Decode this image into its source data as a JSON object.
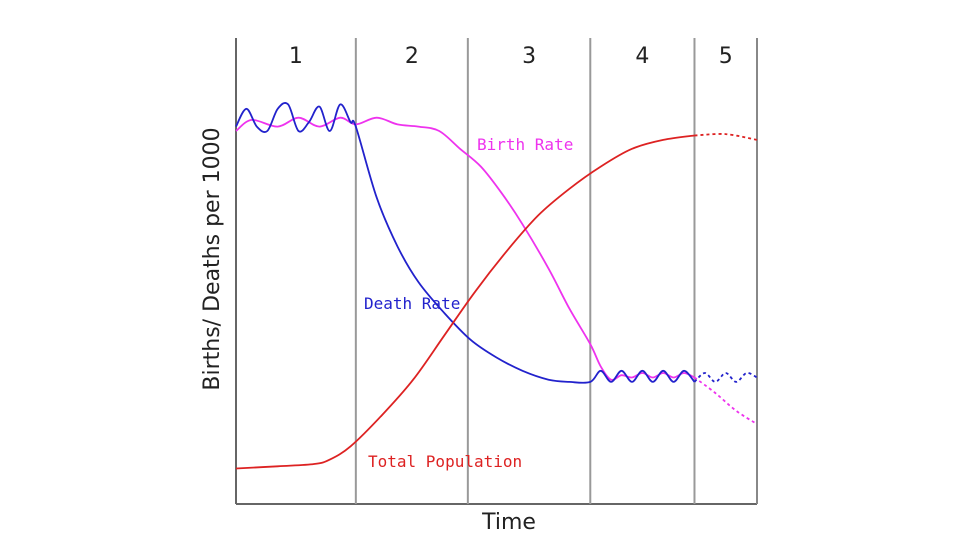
{
  "chart_data": {
    "type": "line",
    "title": "",
    "xlabel": "Time",
    "ylabel": "Births/ Deaths per 1000",
    "grid": false,
    "stages": [
      "1",
      "2",
      "3",
      "4",
      "5"
    ],
    "x_range": [
      0,
      100
    ],
    "y_range": [
      0,
      100
    ],
    "stage_boundaries": [
      23,
      44.5,
      68,
      88
    ],
    "colors": {
      "birth": "#ee33ee",
      "death": "#2222cc",
      "population": "#dd2222",
      "stage_line": "#999999",
      "axis": "#666666"
    },
    "series": [
      {
        "name": "Birth Rate",
        "color": "#ee33ee",
        "x": [
          0,
          3,
          8,
          12,
          16,
          20,
          23,
          27,
          31,
          35,
          39,
          43,
          47,
          51,
          55,
          60,
          64,
          68,
          70,
          72,
          74,
          76,
          78,
          80,
          82,
          84,
          86,
          88
        ],
        "y": [
          84,
          86.5,
          85,
          87,
          85,
          87,
          85.5,
          87,
          85.5,
          85,
          84,
          80,
          76,
          70,
          63,
          53,
          44,
          36,
          31,
          28,
          29,
          28.5,
          29.5,
          28.5,
          29.5,
          28.5,
          29.5,
          28.5
        ],
        "dashed_x": [
          88,
          92,
          96,
          100
        ],
        "dashed_y": [
          28.5,
          25,
          21,
          18
        ]
      },
      {
        "name": "Death Rate",
        "color": "#2222cc",
        "x": [
          0,
          2,
          4,
          6,
          8,
          10,
          12,
          14,
          16,
          18,
          20,
          22,
          23,
          27,
          31,
          35,
          40,
          45,
          50,
          55,
          60,
          64,
          68,
          70,
          72,
          74,
          76,
          78,
          80,
          82,
          84,
          86,
          88
        ],
        "y": [
          85,
          89,
          85,
          84,
          89,
          90,
          84,
          86,
          89.5,
          84,
          90,
          86,
          85,
          69,
          58,
          50,
          43,
          37,
          33,
          30,
          28,
          27.5,
          27.5,
          30,
          27.5,
          30,
          27.5,
          30,
          27.5,
          30,
          27.5,
          30,
          27.5
        ],
        "dashed_x": [
          88,
          90,
          92,
          94,
          96,
          98,
          100
        ],
        "dashed_y": [
          27.5,
          29.5,
          27.5,
          29.5,
          27.5,
          29.5,
          28.5
        ]
      },
      {
        "name": "Total Population",
        "color": "#dd2222",
        "x": [
          0,
          8,
          15,
          18,
          22,
          28,
          34,
          40,
          46,
          52,
          58,
          64,
          70,
          76,
          82,
          88
        ],
        "y": [
          8,
          8.5,
          9,
          10,
          13,
          20,
          28,
          38,
          48,
          57,
          65,
          71,
          76,
          80,
          82,
          83
        ],
        "dashed_x": [
          88,
          94,
          100
        ],
        "dashed_y": [
          83,
          83.3,
          82
        ]
      }
    ],
    "annotations": [
      {
        "text": "Birth Rate",
        "series": "Birth Rate"
      },
      {
        "text": "Death Rate",
        "series": "Death Rate"
      },
      {
        "text": "Total Population",
        "series": "Total Population"
      }
    ]
  }
}
